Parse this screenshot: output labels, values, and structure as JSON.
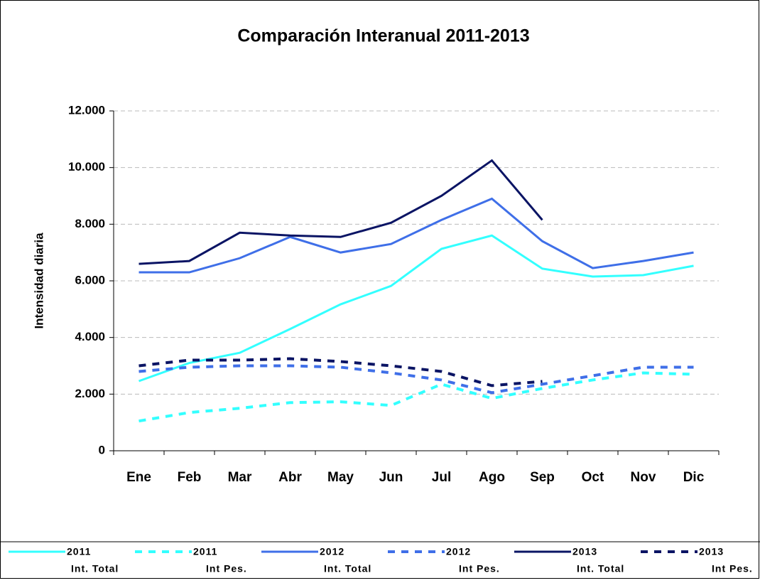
{
  "chart_data": {
    "type": "line",
    "title": "Comparación Interanual 2011-2013",
    "y_label": "Intensidad diaria",
    "categories": [
      "Ene",
      "Feb",
      "Mar",
      "Abr",
      "May",
      "Jun",
      "Jul",
      "Ago",
      "Sep",
      "Oct",
      "Nov",
      "Dic"
    ],
    "ylim": [
      0,
      12000
    ],
    "yticks": [
      0,
      {
        "value": 2000,
        "label": "2.000"
      },
      {
        "value": 4000,
        "label": "4.000"
      },
      {
        "value": 6000,
        "label": "6.000"
      },
      {
        "value": 8000,
        "label": "8.000"
      },
      {
        "value": 10000,
        "label": "10.000"
      },
      {
        "value": 12000,
        "label": "12.000"
      }
    ],
    "grid": true,
    "series": [
      {
        "name": [
          "2011",
          "Int. Total"
        ],
        "color": "#33ffff",
        "dashed": false,
        "values": [
          2460,
          3100,
          3460,
          4300,
          5170,
          5820,
          7130,
          7600,
          6430,
          6150,
          6200,
          6530
        ]
      },
      {
        "name": [
          "2011",
          "Int Pes."
        ],
        "color": "#33ffff",
        "dashed": true,
        "values": [
          1050,
          1350,
          1500,
          1700,
          1730,
          1600,
          2350,
          1850,
          2200,
          2500,
          2750,
          2700
        ]
      },
      {
        "name": [
          "2012",
          "Int. Total"
        ],
        "color": "#3f6fe8",
        "dashed": false,
        "values": [
          6300,
          6300,
          6800,
          7550,
          7000,
          7300,
          8150,
          8900,
          7400,
          6450,
          6700,
          7000
        ]
      },
      {
        "name": [
          "2012",
          "Int Pes."
        ],
        "color": "#3f6fe8",
        "dashed": true,
        "values": [
          2800,
          2950,
          3000,
          3000,
          2950,
          2750,
          2500,
          2050,
          2350,
          2650,
          2950,
          2950
        ]
      },
      {
        "name": [
          "2013",
          "Int. Total"
        ],
        "color": "#0a1464",
        "dashed": false,
        "values": [
          6600,
          6700,
          7700,
          7600,
          7550,
          8050,
          9000,
          10250,
          8150,
          null,
          null,
          null
        ]
      },
      {
        "name": [
          "2013",
          "Int Pes."
        ],
        "color": "#0a1464",
        "dashed": true,
        "values": [
          3000,
          3200,
          3200,
          3250,
          3150,
          3000,
          2800,
          2300,
          2450,
          null,
          null,
          null
        ]
      }
    ]
  }
}
